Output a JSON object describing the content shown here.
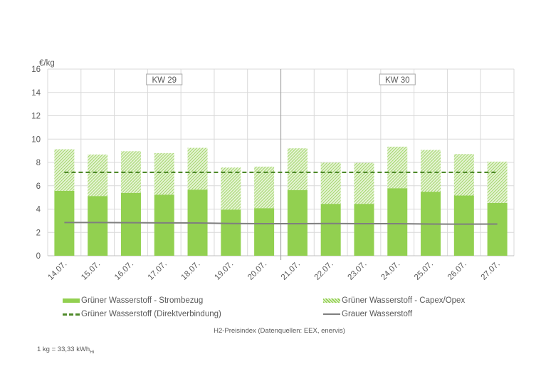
{
  "chart_data": {
    "type": "bar",
    "title": "",
    "ylabel": "€/kg",
    "xlabel": "",
    "ylim": [
      0,
      16
    ],
    "yticks": [
      "0",
      "2",
      "4",
      "6",
      "8",
      "10",
      "12",
      "14",
      "16"
    ],
    "grid": true,
    "categories": [
      "14.07.",
      "15.07.",
      "16.07.",
      "17.07.",
      "18.07.",
      "19.07.",
      "20.07.",
      "21.07.",
      "22.07.",
      "23.07.",
      "24.07.",
      "25.07.",
      "26.07.",
      "27.07."
    ],
    "weeks": [
      {
        "label": "KW 29"
      },
      {
        "label": "KW 30"
      }
    ],
    "series": [
      {
        "name": "Grüner Wasserstoff - Strombezug",
        "kind": "stacked-bar",
        "color": "#92d050",
        "values": [
          5.57,
          5.12,
          5.39,
          5.24,
          5.67,
          3.96,
          4.08,
          5.63,
          4.45,
          4.45,
          5.79,
          5.49,
          5.16,
          4.53
        ]
      },
      {
        "name": "Grüner Wasserstoff - Capex/Opex",
        "kind": "stacked-bar-hatched",
        "color": "#92d050",
        "values": [
          3.56,
          3.56,
          3.57,
          3.56,
          3.58,
          3.6,
          3.56,
          3.58,
          3.54,
          3.52,
          3.56,
          3.58,
          3.56,
          3.54
        ]
      },
      {
        "name": "Grüner Wasserstoff (Direktverbindung)",
        "kind": "dashed-line",
        "color": "#4f8a2a",
        "values": [
          7.15,
          7.15,
          7.15,
          7.15,
          7.15,
          7.15,
          7.15,
          7.15,
          7.15,
          7.15,
          7.15,
          7.15,
          7.15,
          7.15
        ]
      },
      {
        "name": "Grauer Wasserstoff",
        "kind": "line",
        "color": "#7f7f7f",
        "values": [
          2.85,
          2.85,
          2.83,
          2.82,
          2.81,
          2.76,
          2.75,
          2.75,
          2.76,
          2.75,
          2.75,
          2.72,
          2.71,
          2.72
        ]
      }
    ],
    "legend_position": "bottom"
  },
  "caption": "H2-Preisindex (Datenquellen: EEX, enervis)",
  "footnote": {
    "main": "1 kg = 33,33 kWh",
    "sub": "Hi"
  }
}
